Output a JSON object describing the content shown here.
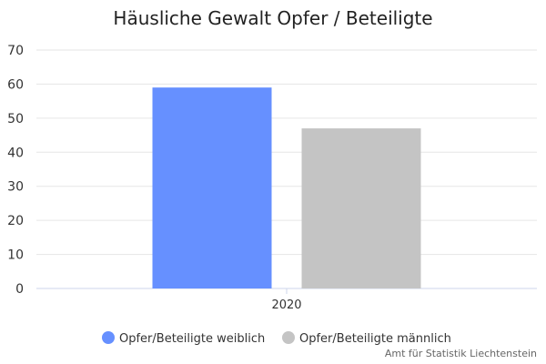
{
  "chart_data": {
    "type": "bar",
    "title": "Häusliche Gewalt Opfer / Beteiligte",
    "categories": [
      "2020"
    ],
    "series": [
      {
        "name": "Opfer/Beteiligte weiblich",
        "values": [
          59
        ],
        "color": "#6690ff"
      },
      {
        "name": "Opfer/Beteiligte männlich",
        "values": [
          47
        ],
        "color": "#c4c4c4"
      }
    ],
    "xlabel": "",
    "ylabel": "",
    "ylim": [
      0,
      70
    ],
    "yticks": [
      0,
      10,
      20,
      30,
      40,
      50,
      60,
      70
    ],
    "grid": true,
    "legend_position": "bottom"
  },
  "credit": "Amt für Statistik Liechtenstein"
}
